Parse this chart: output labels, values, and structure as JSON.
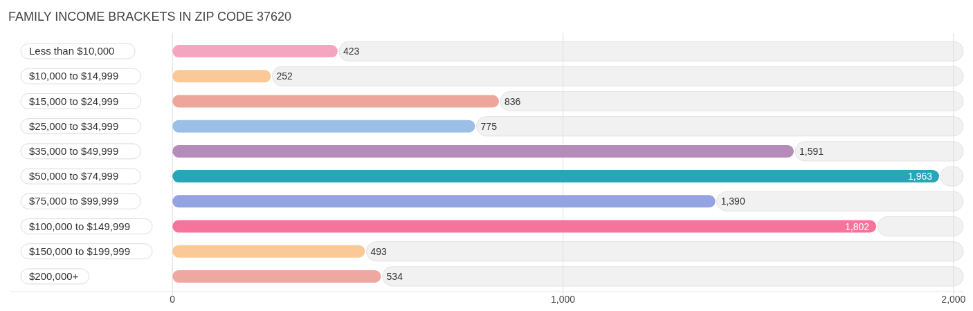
{
  "chart_data": {
    "type": "bar",
    "orientation": "horizontal",
    "title": "FAMILY INCOME BRACKETS IN ZIP CODE 37620",
    "categories": [
      "Less than $10,000",
      "$10,000 to $14,999",
      "$15,000 to $24,999",
      "$25,000 to $34,999",
      "$35,000 to $49,999",
      "$50,000 to $74,999",
      "$75,000 to $99,999",
      "$100,000 to $149,999",
      "$150,000 to $199,999",
      "$200,000+"
    ],
    "values": [
      423,
      252,
      836,
      775,
      1591,
      1963,
      1390,
      1802,
      493,
      534
    ],
    "colors": [
      "#f4a5c0",
      "#fbc997",
      "#eea59a",
      "#9bbfe6",
      "#b48bb9",
      "#28a5b8",
      "#94a3e2",
      "#f6739c",
      "#fbc997",
      "#efa8a1"
    ],
    "value_labels": [
      "423",
      "252",
      "836",
      "775",
      "1,591",
      "1,963",
      "1,390",
      "1,802",
      "493",
      "534"
    ],
    "xlim": [
      -415,
      2025
    ],
    "xticks": [
      0,
      {
        "value": 1000,
        "label": "1,000"
      },
      {
        "value": 2000,
        "label": "2,000"
      }
    ],
    "grid": "x"
  }
}
